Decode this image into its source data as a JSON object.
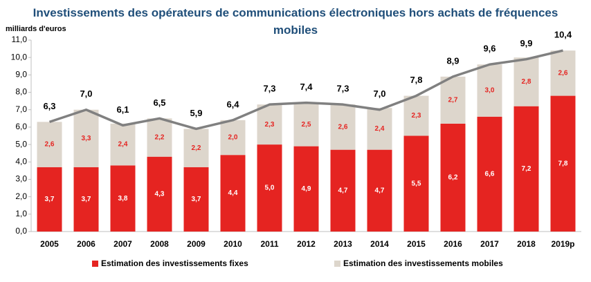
{
  "chart_data": {
    "type": "stacked_bar_line",
    "title": "Investissements des opérateurs de communications électroniques hors achats de fréquences mobiles",
    "y_axis_label": "milliards d'euros",
    "categories": [
      "2005",
      "2006",
      "2007",
      "2008",
      "2009",
      "2010",
      "2011",
      "2012",
      "2013",
      "2014",
      "2015",
      "2016",
      "2017",
      "2018",
      "2019p"
    ],
    "series": [
      {
        "name": "Estimation des investissements fixes",
        "color": "#e52421",
        "values": [
          3.7,
          3.7,
          3.8,
          4.3,
          3.7,
          4.4,
          5.0,
          4.9,
          4.7,
          4.7,
          5.5,
          6.2,
          6.6,
          7.2,
          7.8
        ],
        "value_labels": [
          "3,7",
          "3,7",
          "3,8",
          "4,3",
          "3,7",
          "4,4",
          "5,0",
          "4,9",
          "4,7",
          "4,7",
          "5,5",
          "6,2",
          "6,6",
          "7,2",
          "7,8"
        ]
      },
      {
        "name": "Estimation des investissements  mobiles",
        "color": "#ddd6cc",
        "values": [
          2.6,
          3.3,
          2.4,
          2.2,
          2.2,
          2.0,
          2.3,
          2.5,
          2.6,
          2.4,
          2.3,
          2.7,
          3.0,
          2.8,
          2.6
        ],
        "value_labels": [
          "2,6",
          "3,3",
          "2,4",
          "2,2",
          "2,2",
          "2,0",
          "2,3",
          "2,5",
          "2,6",
          "2,4",
          "2,3",
          "2,7",
          "3,0",
          "2,8",
          "2,6"
        ]
      }
    ],
    "totals": {
      "color": "#808080",
      "values": [
        6.3,
        7.0,
        6.1,
        6.5,
        5.9,
        6.4,
        7.3,
        7.4,
        7.3,
        7.0,
        7.8,
        8.9,
        9.6,
        9.9,
        10.4
      ],
      "value_labels": [
        "6,3",
        "7,0",
        "6,1",
        "6,5",
        "5,9",
        "6,4",
        "7,3",
        "7,4",
        "7,3",
        "7,0",
        "7,8",
        "8,9",
        "9,6",
        "9,9",
        "10,4"
      ]
    },
    "ylim": [
      0,
      11
    ],
    "yticks": [
      {
        "value": 0,
        "label": "0,0"
      },
      {
        "value": 1,
        "label": "1,0"
      },
      {
        "value": 2,
        "label": "2,0"
      },
      {
        "value": 3,
        "label": "3,0"
      },
      {
        "value": 4,
        "label": "4,0"
      },
      {
        "value": 5,
        "label": "5,0"
      },
      {
        "value": 6,
        "label": "6,0"
      },
      {
        "value": 7,
        "label": "7,0"
      },
      {
        "value": 8,
        "label": "8,0"
      },
      {
        "value": 9,
        "label": "9,0"
      },
      {
        "value": 10,
        "label": "10,0"
      },
      {
        "value": 11,
        "label": "11,0"
      }
    ],
    "grid": false
  }
}
